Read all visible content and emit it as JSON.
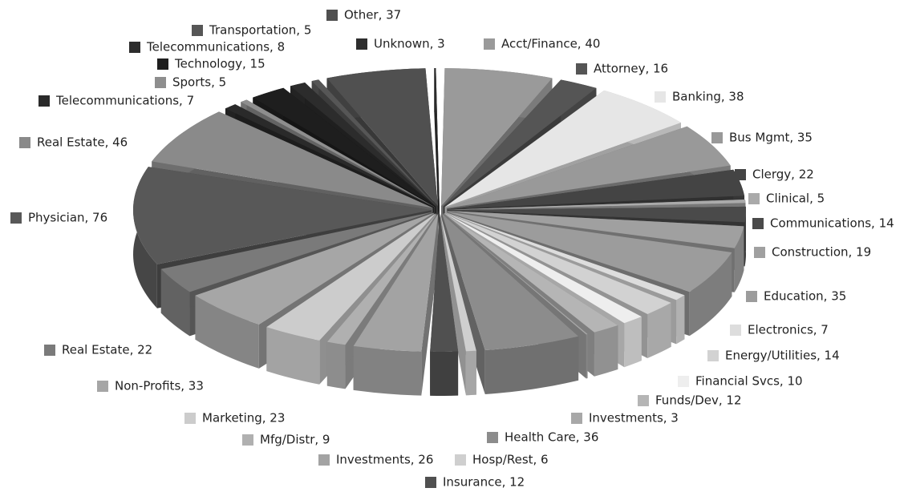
{
  "chart_data": {
    "type": "pie",
    "values": [
      40,
      16,
      38,
      35,
      22,
      5,
      14,
      19,
      35,
      7,
      14,
      10,
      12,
      3,
      36,
      6,
      12,
      26,
      9,
      23,
      33,
      22,
      76,
      46,
      7,
      5,
      15,
      8,
      5,
      37,
      3
    ],
    "value_labels": [
      "Acct/Finance, 40",
      "Attorney, 16",
      "Banking, 38",
      "Bus Mgmt, 35",
      "Clergy, 22",
      "Clinical, 5",
      "Communications, 14",
      "Construction, 19",
      "Education, 35",
      "Electronics, 7",
      "Energy/Utilities, 14",
      "Financial Svcs, 10",
      "Funds/Dev, 12",
      "Investments, 3",
      "Health Care, 36",
      "Hosp/Rest, 6",
      "Insurance, 12",
      "Investments, 26",
      "Mfg/Distr, 9",
      "Marketing, 23",
      "Non-Profits, 33",
      "Real Estate, 22",
      "Physician, 76",
      "Real Estate, 46",
      "Telecommunications, 7",
      "Sports, 5",
      "Technology, 15",
      "Telecommunications, 8",
      "Transportation, 5",
      "Other, 37",
      "Unknown, 3"
    ],
    "colors": [
      "#9a9a9a",
      "#555555",
      "#e6e6e6",
      "#999999",
      "#444444",
      "#aaaaaa",
      "#4a4a4a",
      "#a0a0a0",
      "#9c9c9c",
      "#dddddd",
      "#d2d2d2",
      "#eeeeee",
      "#b5b5b5",
      "#a8a8a8",
      "#8c8c8c",
      "#cfcfcf",
      "#505050",
      "#a3a3a3",
      "#b0b0b0",
      "#cccccc",
      "#a6a6a6",
      "#7a7a7a",
      "#585858",
      "#8a8a8a",
      "#2a2a2a",
      "#8e8e8e",
      "#1e1e1e",
      "#2c2c2c",
      "#565656",
      "#505050",
      "#2e2e2e"
    ]
  }
}
